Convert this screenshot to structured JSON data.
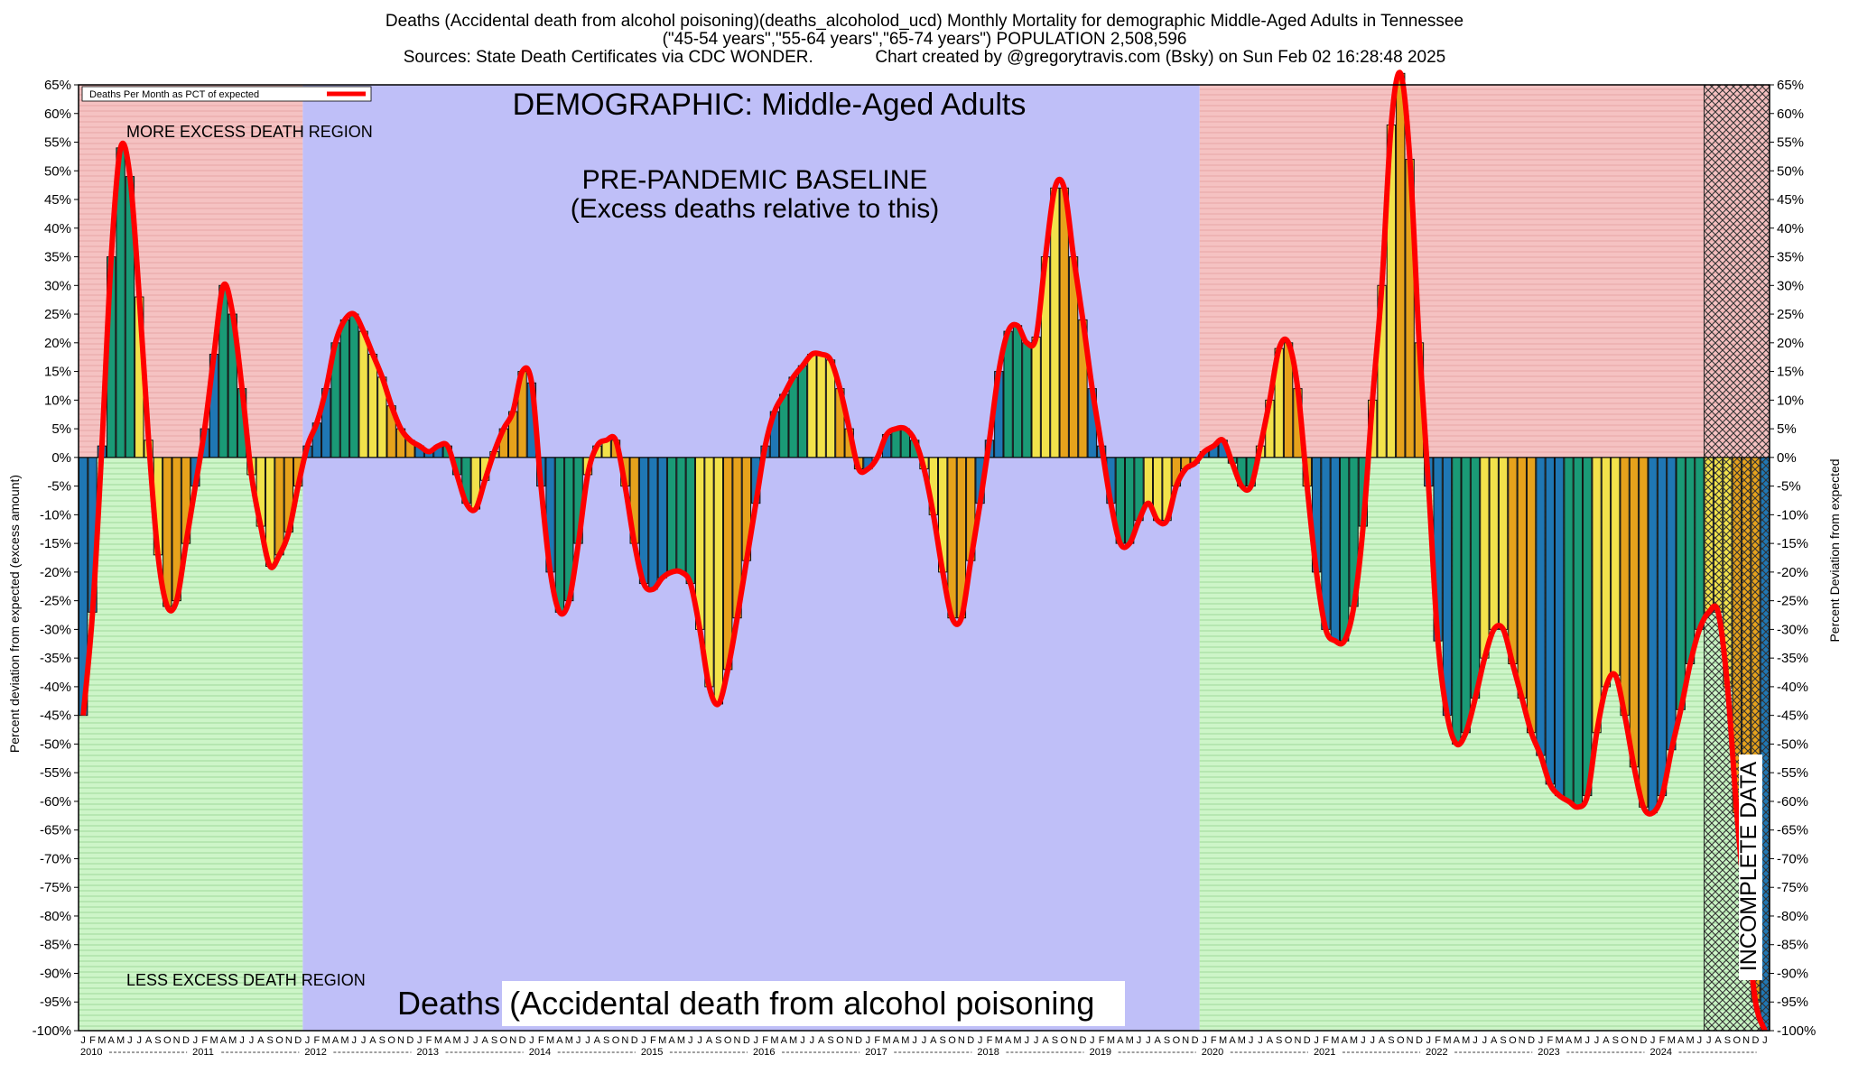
{
  "header": {
    "title_line1": "Deaths (Accidental death from alcohol poisoning)(deaths_alcoholod_ucd) Monthly Mortality for demographic Middle-Aged Adults in Tennessee",
    "title_line2": "(\"45-54 years\",\"55-64 years\",\"65-74 years\") POPULATION 2,508,596",
    "title_line3": "Sources: State Death Certificates via CDC WONDER.             Chart created by @gregorytravis.com (Bsky) on Sun Feb 02 16:28:48 2025"
  },
  "chart_data": {
    "type": "bar",
    "legend": {
      "label": "Deaths Per Month as PCT of expected",
      "placement": "top-left"
    },
    "ylabel_left": "Percent deviation from expected (excess amount)",
    "ylabel_right": "Percent Deviation from expected",
    "ylim": [
      -100,
      65
    ],
    "ytick_step": 5,
    "grid": true,
    "annotations": {
      "demographic": "DEMOGRAPHIC: Middle-Aged Adults",
      "baseline_line1": "PRE-PANDEMIC BASELINE",
      "baseline_line2": "(Excess deaths relative to this)",
      "more_excess": "MORE EXCESS DEATH REGION",
      "less_excess": "LESS EXCESS DEATH REGION",
      "bottom_title": "Deaths (Accidental death from alcohol poisoning",
      "incomplete": "INCOMPLETE DATA"
    },
    "regions": {
      "baseline_start_index": 24,
      "baseline_end_index": 120,
      "incomplete_start_index": 174
    },
    "x_start": "2010-01",
    "years": [
      "2010",
      "2011",
      "2012",
      "2013",
      "2014",
      "2015",
      "2016",
      "2017",
      "2018",
      "2019",
      "2020",
      "2021",
      "2022",
      "2023",
      "2024"
    ],
    "month_letters": [
      "J",
      "F",
      "M",
      "A",
      "M",
      "J",
      "J",
      "A",
      "S",
      "O",
      "N",
      "D"
    ],
    "bar_colors": [
      "#1f77b4",
      "#1a9a76",
      "#f2e24b",
      "#e6a21c"
    ],
    "line_color": "#ff0000",
    "values": [
      -45,
      -27,
      2,
      35,
      54,
      49,
      28,
      3,
      -17,
      -26,
      -25,
      -15,
      -5,
      5,
      18,
      30,
      25,
      12,
      -3,
      -12,
      -19,
      -17,
      -13,
      -5,
      2,
      6,
      12,
      20,
      24,
      25,
      22,
      18,
      14,
      9,
      5,
      3,
      2,
      1,
      2,
      2,
      -3,
      -8,
      -9,
      -4,
      1,
      5,
      8,
      15,
      13,
      -5,
      -20,
      -27,
      -25,
      -15,
      -3,
      2,
      3,
      3,
      -5,
      -15,
      -22,
      -23,
      -21,
      -20,
      -20,
      -22,
      -30,
      -40,
      -43,
      -37,
      -28,
      -18,
      -8,
      2,
      8,
      11,
      14,
      16,
      18,
      18,
      17,
      12,
      5,
      -2,
      -2,
      0,
      4,
      5,
      5,
      3,
      -2,
      -10,
      -20,
      -28,
      -28,
      -18,
      -8,
      3,
      15,
      22,
      23,
      20,
      21,
      35,
      47,
      47,
      35,
      24,
      12,
      2,
      -8,
      -15,
      -15,
      -11,
      -8,
      -11,
      -11,
      -5,
      -2,
      -1,
      1,
      2,
      3,
      -1,
      -5,
      -5,
      2,
      10,
      19,
      20,
      12,
      -5,
      -20,
      -30,
      -32,
      -32,
      -26,
      -12,
      10,
      30,
      58,
      67,
      52,
      20,
      -5,
      -32,
      -45,
      -50,
      -48,
      -42,
      -35,
      -30,
      -30,
      -36,
      -42,
      -48,
      -52,
      -57,
      -59,
      -60,
      -61,
      -59,
      -48,
      -40,
      -38,
      -45,
      -54,
      -61,
      -62,
      -59,
      -51,
      -44,
      -36,
      -30,
      -27,
      -27,
      -40,
      -62,
      -80,
      -95,
      -100
    ]
  }
}
